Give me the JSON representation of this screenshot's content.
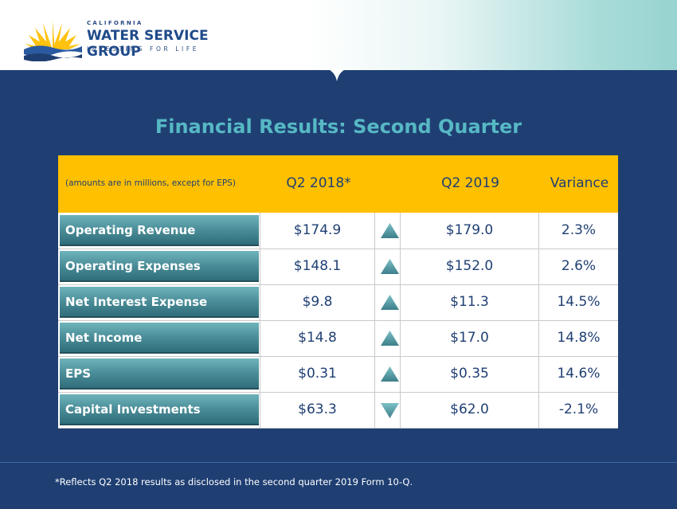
{
  "logo": {
    "line1": "CALIFORNIA",
    "line2": "WATER SERVICE GROUP",
    "line3": "INVESTING FOR LIFE"
  },
  "title": "Financial Results: Second Quarter",
  "table": {
    "note": "(amounts are in millions, except for EPS)",
    "headers": [
      "Q2 2018*",
      "Q2 2019",
      "Variance"
    ],
    "rows": [
      {
        "label": "Operating Revenue",
        "q2_2018": "$174.9",
        "q2_2019": "$179.0",
        "variance": "2.3%",
        "trend": "up"
      },
      {
        "label": "Operating Expenses",
        "q2_2018": "$148.1",
        "q2_2019": "$152.0",
        "variance": "2.6%",
        "trend": "up"
      },
      {
        "label": "Net Interest Expense",
        "q2_2018": "$9.8",
        "q2_2019": "$11.3",
        "variance": "14.5%",
        "trend": "up"
      },
      {
        "label": "Net Income",
        "q2_2018": "$14.8",
        "q2_2019": "$17.0",
        "variance": "14.8%",
        "trend": "up"
      },
      {
        "label": "EPS",
        "q2_2018": "$0.31",
        "q2_2019": "$0.35",
        "variance": "14.6%",
        "trend": "up"
      },
      {
        "label": "Capital Investments",
        "q2_2018": "$63.3",
        "q2_2019": "$62.0",
        "variance": "-2.1%",
        "trend": "down"
      }
    ]
  },
  "footnote": "*Reflects Q2 2018 results as disclosed in the second quarter 2019 Form 10-Q.",
  "colors": {
    "background": "#1f3f73",
    "header": "#ffc000",
    "title": "#56b8c4",
    "label_teal": "#4a8d98",
    "arrow_teal": "#5fa7b0"
  }
}
